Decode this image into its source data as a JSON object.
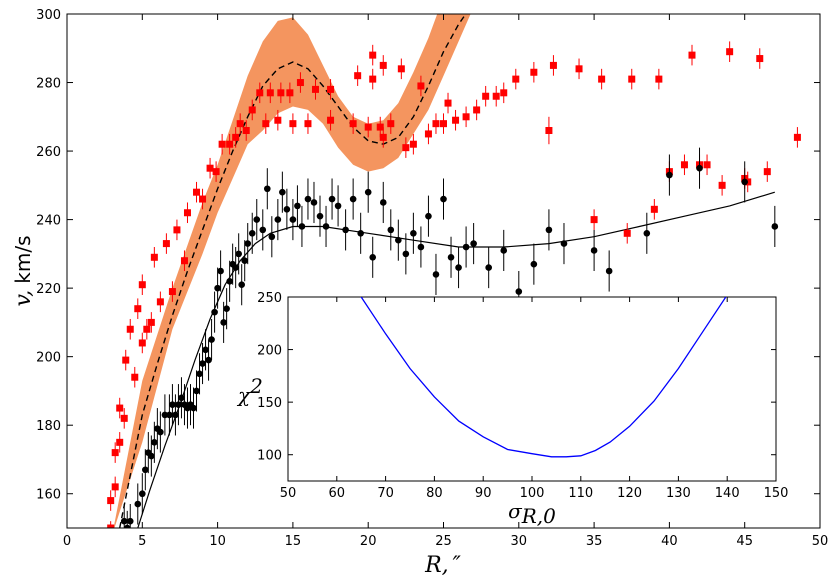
{
  "chart_data": [
    {
      "name": "main",
      "type": "scatter",
      "xlabel_var": "R,",
      "xlabel_unit": "″",
      "ylabel_var": "v,",
      "ylabel_unit": "km/s",
      "xlim": [
        0,
        50
      ],
      "ylim": [
        150,
        300
      ],
      "xticks": [
        "0",
        "5",
        "10",
        "15",
        "20",
        "25",
        "30",
        "35",
        "40",
        "45",
        "50"
      ],
      "yticks": [
        "160",
        "180",
        "200",
        "220",
        "240",
        "260",
        "280",
        "300"
      ],
      "colors": {
        "red": "#ff0000",
        "black": "#000000",
        "band": "#f4955f"
      },
      "band": {
        "x": [
          3.0,
          5.0,
          7.0,
          9.0,
          10.0,
          11.0,
          12.0,
          13.0,
          14.0,
          15.0,
          16.0,
          17.0,
          18.0,
          19.0,
          20.0,
          21.0,
          22.0,
          23.0,
          24.0,
          25.0,
          26.0,
          27.0
        ],
        "upper": [
          148,
          193,
          220,
          245,
          256,
          269,
          282,
          292,
          298,
          299,
          294,
          285,
          276,
          270,
          268,
          269,
          274,
          283,
          293,
          305,
          318,
          332
        ],
        "lower": [
          148,
          175,
          208,
          230,
          242,
          252,
          262,
          266,
          271,
          273,
          272,
          268,
          261,
          256,
          254,
          255,
          258,
          265,
          272,
          282,
          292,
          302
        ]
      },
      "dashed_model": {
        "x": [
          3.5,
          5.0,
          6.0,
          7.0,
          8.0,
          9.0,
          10.0,
          11.0,
          12.0,
          13.0,
          14.0,
          15.0,
          16.0,
          17.0,
          18.0,
          19.0,
          20.0,
          21.0,
          22.0,
          23.0,
          24.0,
          25.0,
          26.0,
          26.8
        ],
        "y": [
          150,
          183,
          198,
          212,
          225,
          237,
          249,
          260,
          270,
          279,
          284,
          286,
          284,
          279,
          273,
          267,
          263,
          262,
          264,
          270,
          279,
          289,
          297,
          302
        ]
      },
      "solid_model": {
        "x": [
          4.7,
          5.5,
          6.5,
          7.5,
          8.5,
          9.5,
          10.5,
          11.5,
          12.5,
          13.5,
          15.0,
          17.0,
          20.0,
          23.0,
          26.0,
          29.0,
          32.0,
          35.0,
          38.0,
          41.0,
          44.0,
          47.0
        ],
        "y": [
          150,
          161,
          174,
          186,
          199,
          211,
          221,
          228,
          233,
          236,
          238,
          238,
          236,
          234,
          232,
          232,
          233,
          235,
          238,
          241,
          244,
          248
        ]
      },
      "red_points": [
        [
          2.9,
          150,
          2
        ],
        [
          2.9,
          158,
          3
        ],
        [
          3.2,
          162,
          3
        ],
        [
          3.2,
          172,
          3
        ],
        [
          3.5,
          175,
          3
        ],
        [
          3.5,
          185,
          3
        ],
        [
          3.8,
          182,
          3
        ],
        [
          3.9,
          199,
          3
        ],
        [
          4.2,
          208,
          3
        ],
        [
          4.5,
          194,
          3
        ],
        [
          4.7,
          214,
          3
        ],
        [
          5.0,
          204,
          3
        ],
        [
          5.0,
          221,
          3
        ],
        [
          5.3,
          208,
          3
        ],
        [
          5.6,
          210,
          3
        ],
        [
          5.8,
          229,
          3
        ],
        [
          6.2,
          216,
          3
        ],
        [
          6.6,
          233,
          3
        ],
        [
          7.0,
          219,
          3
        ],
        [
          7.3,
          237,
          3
        ],
        [
          7.8,
          228,
          3
        ],
        [
          8.0,
          242,
          3
        ],
        [
          8.6,
          248,
          3
        ],
        [
          9.0,
          246,
          3
        ],
        [
          9.5,
          255,
          3
        ],
        [
          9.9,
          254,
          3
        ],
        [
          10.3,
          262,
          3
        ],
        [
          10.8,
          262,
          3
        ],
        [
          11.2,
          264,
          3
        ],
        [
          11.5,
          268,
          3
        ],
        [
          11.9,
          266,
          3
        ],
        [
          12.3,
          272,
          3
        ],
        [
          12.8,
          277,
          3
        ],
        [
          13.2,
          268,
          3
        ],
        [
          13.5,
          277,
          3
        ],
        [
          14.0,
          269,
          3
        ],
        [
          14.2,
          277,
          3
        ],
        [
          14.8,
          277,
          3
        ],
        [
          15.0,
          268,
          3
        ],
        [
          15.5,
          280,
          3
        ],
        [
          16.0,
          268,
          3
        ],
        [
          16.5,
          278,
          3
        ],
        [
          17.5,
          269,
          3
        ],
        [
          17.5,
          278,
          3
        ],
        [
          19.0,
          268,
          3
        ],
        [
          19.3,
          282,
          3
        ],
        [
          20.0,
          267,
          3
        ],
        [
          20.3,
          281,
          3
        ],
        [
          20.3,
          288,
          3
        ],
        [
          20.8,
          267,
          3
        ],
        [
          21.0,
          264,
          3
        ],
        [
          21.0,
          285,
          3
        ],
        [
          21.5,
          268,
          3
        ],
        [
          22.2,
          284,
          3
        ],
        [
          22.5,
          261,
          3
        ],
        [
          23.0,
          262,
          3
        ],
        [
          23.5,
          279,
          3
        ],
        [
          24.0,
          265,
          3
        ],
        [
          24.5,
          268,
          3
        ],
        [
          25.0,
          268,
          3
        ],
        [
          25.3,
          274,
          3
        ],
        [
          25.8,
          269,
          3
        ],
        [
          26.5,
          270,
          3
        ],
        [
          27.2,
          272,
          3
        ],
        [
          27.8,
          276,
          3
        ],
        [
          28.5,
          276,
          3
        ],
        [
          29.0,
          277,
          3
        ],
        [
          29.8,
          281,
          3
        ],
        [
          31.0,
          283,
          3
        ],
        [
          32.0,
          266,
          4
        ],
        [
          32.3,
          285,
          3
        ],
        [
          34.0,
          284,
          3
        ],
        [
          35.0,
          240,
          3
        ],
        [
          35.5,
          281,
          3
        ],
        [
          37.2,
          236,
          3
        ],
        [
          37.5,
          281,
          3
        ],
        [
          39.0,
          243,
          3
        ],
        [
          39.3,
          281,
          3
        ],
        [
          40.0,
          254,
          3
        ],
        [
          41.0,
          256,
          3
        ],
        [
          41.5,
          288,
          3
        ],
        [
          42.0,
          256,
          3
        ],
        [
          42.5,
          256,
          3
        ],
        [
          43.5,
          250,
          3
        ],
        [
          44.0,
          289,
          3
        ],
        [
          45.0,
          252,
          3
        ],
        [
          45.2,
          251,
          3
        ],
        [
          46.0,
          287,
          3
        ],
        [
          46.5,
          254,
          3
        ],
        [
          48.5,
          264,
          3
        ]
      ],
      "black_points": [
        [
          3.8,
          152,
          5
        ],
        [
          4.0,
          150,
          5
        ],
        [
          4.2,
          152,
          5
        ],
        [
          4.7,
          157,
          6
        ],
        [
          5.0,
          160,
          6
        ],
        [
          5.2,
          167,
          6
        ],
        [
          5.4,
          172,
          6
        ],
        [
          5.6,
          171,
          6
        ],
        [
          5.8,
          175,
          6
        ],
        [
          6.0,
          179,
          6
        ],
        [
          6.2,
          178,
          6
        ],
        [
          6.5,
          183,
          6
        ],
        [
          6.8,
          183,
          6
        ],
        [
          7.0,
          186,
          6
        ],
        [
          7.2,
          183,
          6
        ],
        [
          7.4,
          186,
          6
        ],
        [
          7.6,
          188,
          6
        ],
        [
          7.8,
          186,
          6
        ],
        [
          8.0,
          185,
          6
        ],
        [
          8.2,
          186,
          6
        ],
        [
          8.4,
          185,
          6
        ],
        [
          8.6,
          190,
          6
        ],
        [
          8.8,
          195,
          6
        ],
        [
          9.0,
          198,
          6
        ],
        [
          9.2,
          202,
          6
        ],
        [
          9.4,
          199,
          6
        ],
        [
          9.6,
          205,
          6
        ],
        [
          9.8,
          213,
          6
        ],
        [
          10.0,
          220,
          6
        ],
        [
          10.2,
          225,
          6
        ],
        [
          10.4,
          210,
          6
        ],
        [
          10.6,
          214,
          6
        ],
        [
          10.8,
          222,
          6
        ],
        [
          11.0,
          227,
          6
        ],
        [
          11.2,
          226,
          6
        ],
        [
          11.4,
          230,
          6
        ],
        [
          11.6,
          221,
          6
        ],
        [
          11.8,
          228,
          6
        ],
        [
          12.0,
          233,
          6
        ],
        [
          12.3,
          236,
          6
        ],
        [
          12.6,
          240,
          6
        ],
        [
          13.0,
          237,
          6
        ],
        [
          13.3,
          249,
          6
        ],
        [
          13.6,
          235,
          6
        ],
        [
          14.0,
          240,
          6
        ],
        [
          14.3,
          248,
          6
        ],
        [
          14.6,
          243,
          6
        ],
        [
          15.0,
          240,
          6
        ],
        [
          15.3,
          244,
          6
        ],
        [
          15.6,
          238,
          6
        ],
        [
          16.0,
          246,
          6
        ],
        [
          16.4,
          245,
          6
        ],
        [
          16.8,
          241,
          6
        ],
        [
          17.2,
          238,
          6
        ],
        [
          17.6,
          246,
          6
        ],
        [
          18.0,
          244,
          6
        ],
        [
          18.5,
          237,
          6
        ],
        [
          19.0,
          246,
          6
        ],
        [
          19.5,
          236,
          6
        ],
        [
          20.0,
          248,
          6
        ],
        [
          20.3,
          229,
          6
        ],
        [
          21.0,
          245,
          6
        ],
        [
          21.5,
          237,
          6
        ],
        [
          22.0,
          234,
          6
        ],
        [
          22.5,
          230,
          6
        ],
        [
          23.0,
          236,
          6
        ],
        [
          23.5,
          232,
          6
        ],
        [
          24.0,
          241,
          6
        ],
        [
          24.5,
          224,
          6
        ],
        [
          25.0,
          246,
          6
        ],
        [
          25.5,
          229,
          6
        ],
        [
          26.0,
          226,
          6
        ],
        [
          26.5,
          232,
          6
        ],
        [
          27.0,
          233,
          6
        ],
        [
          28.0,
          226,
          6
        ],
        [
          29.0,
          231,
          6
        ],
        [
          30.0,
          219,
          6
        ],
        [
          31.0,
          227,
          6
        ],
        [
          32.0,
          237,
          6
        ],
        [
          33.0,
          233,
          6
        ],
        [
          35.0,
          231,
          6
        ],
        [
          36.0,
          225,
          6
        ],
        [
          38.5,
          236,
          6
        ],
        [
          40.0,
          253,
          6
        ],
        [
          42.0,
          255,
          6
        ],
        [
          45.0,
          251,
          6
        ],
        [
          47.0,
          238,
          6
        ]
      ]
    },
    {
      "name": "inset",
      "type": "line",
      "xlabel_var": "σ",
      "xlabel_sub": "R,0",
      "ylabel_var": "χ",
      "ylabel_sup": "2",
      "xlim": [
        50,
        150
      ],
      "ylim": [
        75,
        250
      ],
      "xticks": [
        "50",
        "60",
        "70",
        "80",
        "90",
        "100",
        "110",
        "120",
        "130",
        "140",
        "150"
      ],
      "yticks": [
        "100",
        "150",
        "200",
        "250"
      ],
      "color": "#0000ff",
      "x": [
        65,
        70,
        75,
        80,
        85,
        90,
        95,
        100,
        104,
        107,
        110,
        113,
        116,
        120,
        125,
        130,
        135,
        140
      ],
      "y": [
        250,
        215,
        182,
        155,
        132,
        117,
        105,
        101,
        98,
        98,
        99,
        104,
        112,
        127,
        151,
        182,
        217,
        252
      ]
    }
  ]
}
